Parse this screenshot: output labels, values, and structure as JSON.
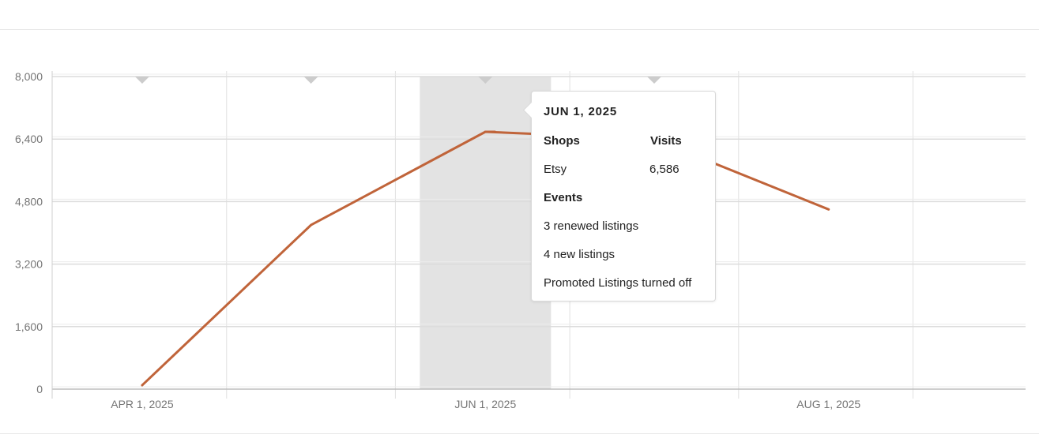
{
  "chart_data": {
    "type": "line",
    "x": [
      "2025-04-01",
      "2025-05-01",
      "2025-06-01",
      "2025-07-01",
      "2025-08-01"
    ],
    "x_tick_labels": [
      "APR 1, 2025",
      "JUN 1, 2025",
      "AUG 1, 2025"
    ],
    "x_tick_dates": [
      "2025-04-01",
      "2025-06-01",
      "2025-08-01"
    ],
    "series": [
      {
        "values": [
          100,
          4200,
          6586,
          6400,
          4600
        ]
      }
    ],
    "ylim": [
      0,
      8000
    ],
    "y_ticks": [
      0,
      1600,
      3200,
      4800,
      6400,
      8000
    ],
    "y_tick_labels": [
      "0",
      "1,600",
      "3,200",
      "4,800",
      "6,400",
      "8,000"
    ],
    "event_markers": [
      "2025-04-01",
      "2025-05-01",
      "2025-06-01",
      "2025-07-01"
    ],
    "highlighted_x": "2025-06-01",
    "grid": true,
    "line_color": "#c0643a",
    "highlight_color": "#e3e3e3"
  },
  "tooltip": {
    "date": "JUN 1, 2025",
    "shops_header": "Shops",
    "visits_header": "Visits",
    "shop": "Etsy",
    "visits": "6,586",
    "events_header": "Events",
    "events": [
      "3 renewed listings",
      "4 new listings",
      "Promoted Listings turned off"
    ]
  }
}
